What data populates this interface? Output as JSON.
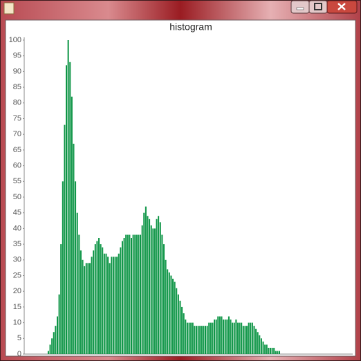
{
  "chart_data": {
    "type": "bar",
    "title": "histogram",
    "values": [
      0,
      0,
      0,
      0,
      0,
      0,
      0,
      0,
      0,
      0,
      0,
      0,
      0,
      1,
      3,
      5,
      7,
      9,
      12,
      19,
      35,
      55,
      73,
      92,
      100,
      93,
      82,
      67,
      55,
      45,
      38,
      33,
      30,
      28,
      29,
      29,
      29,
      31,
      33,
      35,
      36,
      37,
      35,
      34,
      32,
      32,
      31,
      29,
      31,
      31,
      31,
      31,
      32,
      34,
      36,
      37,
      38,
      38,
      38,
      37,
      38,
      38,
      38,
      38,
      38,
      41,
      45,
      47,
      44,
      43,
      41,
      40,
      40,
      43,
      44,
      42,
      38,
      35,
      30,
      27,
      26,
      25,
      24,
      23,
      21,
      19,
      17,
      15,
      13,
      11,
      10,
      10,
      10,
      10,
      9,
      9,
      9,
      9,
      9,
      9,
      9,
      9,
      10,
      10,
      10,
      11,
      11,
      12,
      12,
      12,
      11,
      11,
      11,
      12,
      11,
      10,
      10,
      11,
      10,
      10,
      10,
      9,
      9,
      9,
      10,
      10,
      10,
      9,
      8,
      7,
      6,
      5,
      4,
      3,
      3,
      2,
      2,
      2,
      2,
      1,
      1,
      1,
      0,
      0,
      0,
      0,
      0,
      0,
      0,
      0,
      0,
      0,
      0,
      0,
      0,
      0,
      0,
      0,
      0,
      0,
      0,
      0,
      0,
      0,
      0,
      0,
      0,
      0,
      0,
      0,
      0,
      0,
      0,
      0,
      0,
      0,
      0,
      0,
      0,
      0,
      0,
      0
    ],
    "color": "#0b9444",
    "ylim": [
      0,
      100
    ],
    "yticks": [
      0,
      5,
      10,
      15,
      20,
      25,
      30,
      35,
      40,
      45,
      50,
      55,
      60,
      65,
      70,
      75,
      80,
      85,
      90,
      95,
      100
    ]
  }
}
